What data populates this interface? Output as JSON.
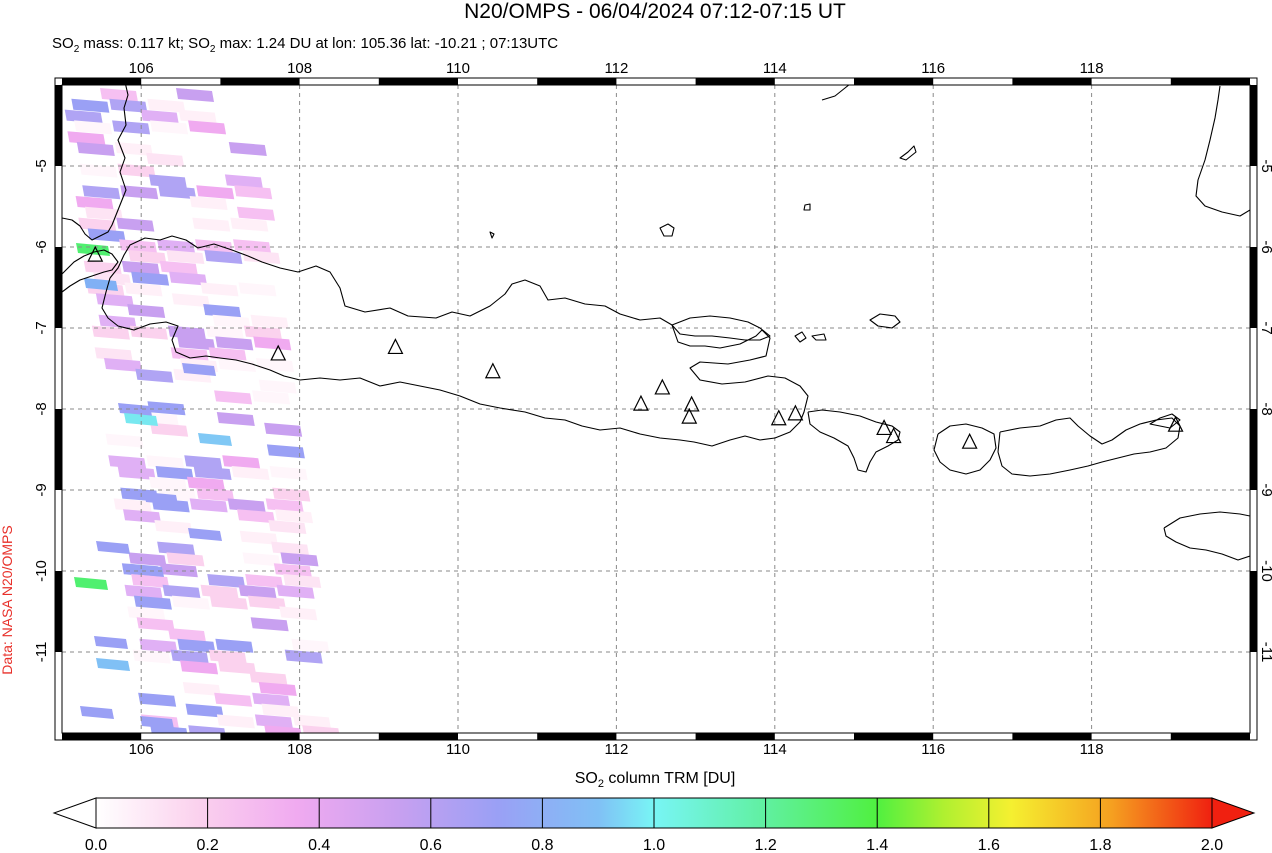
{
  "title": "N20/OMPS - 06/04/2024 07:12-07:15 UT",
  "subtitle": {
    "mass_prefix": "SO",
    "mass_sub": "2",
    "mass_text": " mass: 0.117 kt; SO",
    "max_sub": "2",
    "max_text": " max: 1.24 DU at lon: 105.36 lat: -10.21 ; 07:13UTC"
  },
  "credit": "Data: NASA N20/OMPS",
  "map": {
    "lon_range": [
      105,
      120
    ],
    "lat_range": [
      -12,
      -4
    ],
    "lon_ticks": [
      "106",
      "108",
      "110",
      "112",
      "114",
      "116",
      "118"
    ],
    "lat_ticks": [
      "-5",
      "-6",
      "-7",
      "-8",
      "-9",
      "-10",
      "-11"
    ]
  },
  "colorbar": {
    "label_prefix": "SO",
    "label_sub": "2",
    "label_suffix": " column TRM [DU]",
    "min": 0,
    "max": 2,
    "ticks": [
      "0.0",
      "0.2",
      "0.4",
      "0.6",
      "0.8",
      "1.0",
      "1.2",
      "1.4",
      "1.6",
      "1.8",
      "2.0"
    ],
    "stops": [
      "#ffffff",
      "#fbd2ee",
      "#f0aaf0",
      "#c8a0f0",
      "#9aa0f5",
      "#80c0f5",
      "#78f5f5",
      "#60f0a0",
      "#50f040",
      "#b0f030",
      "#f5f030",
      "#f5a020",
      "#f02010"
    ]
  },
  "volcanoes": [
    {
      "lon": 105.42,
      "lat": -6.1
    },
    {
      "lon": 107.73,
      "lat": -7.32
    },
    {
      "lon": 109.21,
      "lat": -7.24
    },
    {
      "lon": 110.44,
      "lat": -7.54
    },
    {
      "lon": 112.31,
      "lat": -7.94
    },
    {
      "lon": 112.58,
      "lat": -7.74
    },
    {
      "lon": 112.95,
      "lat": -7.95
    },
    {
      "lon": 112.92,
      "lat": -8.1
    },
    {
      "lon": 114.05,
      "lat": -8.12
    },
    {
      "lon": 114.26,
      "lat": -8.06
    },
    {
      "lon": 115.38,
      "lat": -8.24
    },
    {
      "lon": 115.5,
      "lat": -8.34
    },
    {
      "lon": 116.46,
      "lat": -8.41
    },
    {
      "lon": 119.06,
      "lat": -8.2
    }
  ]
}
